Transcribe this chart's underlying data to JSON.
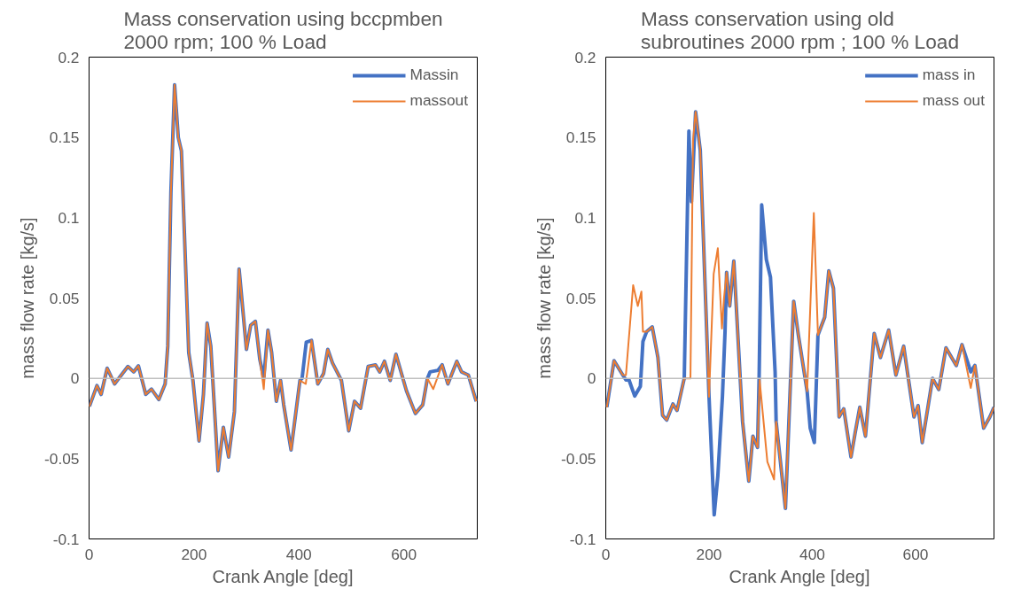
{
  "chart_data": [
    {
      "type": "line",
      "title": "Mass conservation using bccpmben\n2000 rpm; 100 % Load",
      "xlabel": "Crank Angle [deg]",
      "ylabel": "mass flow rate [kg/s]",
      "xlim": [
        0,
        740
      ],
      "ylim": [
        -0.1,
        0.2
      ],
      "xticks": [
        0,
        200,
        400,
        600
      ],
      "yticks": [
        -0.1,
        -0.05,
        0,
        0.05,
        0.1,
        0.15,
        0.2
      ],
      "grid": false,
      "legend": "top right",
      "ref_lines": [
        {
          "axis": "y",
          "value": 0,
          "label": null,
          "color": "#bfbfbf"
        }
      ],
      "series": [
        {
          "name": "Massin",
          "color": "#4472c4",
          "x": [
            0.6,
            15,
            23,
            34.5,
            48.6,
            74,
            85,
            94,
            108,
            119,
            133,
            145,
            150,
            156,
            163,
            170,
            176,
            190,
            198,
            209.6,
            218,
            225,
            232,
            246,
            256,
            266,
            277,
            286,
            300,
            308,
            317,
            325.5,
            333,
            341,
            348,
            357,
            365,
            371,
            385,
            402,
            406,
            414,
            424,
            436,
            447,
            455,
            464,
            481,
            495,
            506,
            517.5,
            532,
            546,
            554,
            563,
            574,
            585,
            605,
            622,
            636,
            645,
            650,
            665,
            673,
            684,
            701,
            710,
            723,
            738
          ],
          "values": [
            -0.0175,
            -0.0045,
            -0.01,
            0.0063,
            -0.0035,
            0.0074,
            0.004,
            0.0078,
            -0.01,
            -0.0067,
            -0.0132,
            -0.0035,
            0.02,
            0.1156,
            0.1827,
            0.15,
            0.1416,
            0.016,
            -0.0013,
            -0.039,
            -0.01,
            0.0344,
            0.02,
            -0.0576,
            -0.0305,
            -0.049,
            -0.0208,
            0.068,
            0.018,
            0.033,
            0.0355,
            0.0117,
            0,
            0.03,
            0.016,
            -0.0143,
            -0.0013,
            -0.0165,
            -0.0446,
            -0.0013,
            0,
            0.0225,
            0.0236,
            -0.0035,
            0.003,
            0.018,
            0.0095,
            -0.0013,
            -0.0327,
            -0.0143,
            -0.0186,
            0.0074,
            0.0084,
            0.004,
            0.0106,
            -0.0013,
            0.015,
            -0.0078,
            -0.0219,
            -0.0165,
            0,
            0.004,
            0.005,
            0.0084,
            -0.0035,
            0.0106,
            0.004,
            0.002,
            -0.0143
          ]
        },
        {
          "name": "massout",
          "color": "#ed7d31",
          "x": [
            0.6,
            15,
            23,
            34.5,
            48.6,
            74,
            85,
            94,
            108,
            119,
            133,
            145,
            150,
            156,
            163,
            170,
            176,
            190,
            198,
            209.6,
            218,
            225,
            232,
            246,
            256,
            266,
            277,
            286,
            300,
            308,
            317,
            325.5,
            333,
            341,
            348,
            357,
            365,
            371,
            385,
            402,
            413,
            424,
            436,
            447,
            455,
            464,
            481,
            495,
            506,
            517.5,
            532,
            546,
            554,
            563,
            574,
            585,
            605,
            622,
            636,
            645,
            656,
            673,
            684,
            701,
            710,
            723,
            738
          ],
          "values": [
            -0.0175,
            -0.0045,
            -0.01,
            0.0063,
            -0.0035,
            0.0074,
            0.004,
            0.0078,
            -0.01,
            -0.0067,
            -0.0132,
            -0.0035,
            0.02,
            0.1156,
            0.1827,
            0.15,
            0.1416,
            0.016,
            -0.0013,
            -0.039,
            -0.01,
            0.0344,
            0.02,
            -0.0576,
            -0.0305,
            -0.049,
            -0.0208,
            0.068,
            0.018,
            0.033,
            0.0355,
            0.0117,
            -0.0067,
            0.03,
            0.016,
            -0.0143,
            -0.0013,
            -0.0165,
            -0.0446,
            -0.0013,
            -0.0035,
            0.0236,
            -0.0035,
            0.003,
            0.018,
            0.0095,
            -0.0013,
            -0.0327,
            -0.0143,
            -0.0186,
            0.0074,
            0.0084,
            0.004,
            0.0106,
            -0.0013,
            0.015,
            -0.0078,
            -0.0219,
            -0.0165,
            0,
            -0.0067,
            0.0084,
            -0.0035,
            0.0106,
            0.004,
            0.002,
            -0.0143
          ]
        }
      ]
    },
    {
      "type": "line",
      "title": "Mass conservation using old\nsubroutines 2000 rpm ; 100 % Load",
      "xlabel": "Crank Angle [deg]",
      "ylabel": "mass flow rate [kg/s]",
      "xlim": [
        0,
        752
      ],
      "ylim": [
        -0.1,
        0.2
      ],
      "xticks": [
        0,
        200,
        400,
        600
      ],
      "yticks": [
        -0.1,
        -0.05,
        0,
        0.05,
        0.1,
        0.15,
        0.2
      ],
      "grid": false,
      "legend": "top right",
      "ref_lines": [
        {
          "axis": "y",
          "value": 0,
          "label": null,
          "color": "#bfbfbf"
        }
      ],
      "series": [
        {
          "name": "mass in",
          "color": "#4472c4",
          "x": [
            2,
            16,
            33,
            39,
            45,
            56,
            67,
            72,
            79,
            90,
            101,
            110,
            118,
            130,
            138,
            152,
            161,
            166,
            174,
            183,
            200,
            210,
            217,
            226,
            231,
            234,
            240,
            248,
            265,
            277,
            285,
            294,
            297,
            302,
            311,
            319,
            328,
            330,
            348,
            364,
            373,
            390,
            396,
            404,
            411,
            424,
            432,
            441,
            452,
            461,
            475,
            483,
            492,
            503,
            520,
            532,
            548,
            562,
            577,
            597,
            605,
            613,
            633,
            645,
            659,
            679,
            690,
            707,
            715,
            732,
            744,
            752
          ],
          "values": [
            -0.018,
            0.011,
            0.002,
            -0.001,
            -0.001,
            -0.011,
            -0.005,
            0.023,
            0.029,
            0.032,
            0.013,
            -0.023,
            -0.026,
            -0.016,
            -0.02,
            0,
            0.154,
            0.11,
            0.166,
            0.142,
            -0.0115,
            -0.085,
            -0.061,
            -0.011,
            0.029,
            0.066,
            0.045,
            0.073,
            -0.027,
            -0.064,
            -0.036,
            -0.043,
            0,
            0.108,
            0.074,
            0.063,
            0.004,
            -0.027,
            -0.081,
            0.048,
            0.027,
            -0.008,
            -0.031,
            -0.04,
            0.027,
            0.038,
            0.067,
            0.056,
            -0.024,
            -0.019,
            -0.049,
            -0.034,
            -0.018,
            -0.036,
            0.028,
            0.013,
            0.03,
            0.002,
            0.02,
            -0.024,
            -0.017,
            -0.04,
            0,
            -0.007,
            0.019,
            0.008,
            0.021,
            0.004,
            0.008,
            -0.031,
            -0.024,
            -0.018
          ]
        },
        {
          "name": "mass out",
          "color": "#ed7d31",
          "x": [
            2,
            16,
            33,
            39,
            53,
            62,
            69,
            72,
            79,
            90,
            101,
            110,
            118,
            130,
            138,
            152,
            164,
            169,
            174,
            183,
            200,
            209,
            217,
            225,
            229,
            234,
            240,
            248,
            265,
            277,
            285,
            294,
            298,
            313,
            326,
            330,
            348,
            364,
            373,
            390,
            403,
            411,
            424,
            432,
            441,
            452,
            461,
            475,
            483,
            492,
            503,
            520,
            532,
            548,
            562,
            577,
            597,
            605,
            613,
            633,
            645,
            659,
            679,
            690,
            707,
            715,
            732,
            744,
            752
          ],
          "values": [
            -0.018,
            0.011,
            0.002,
            0.002,
            0.058,
            0.045,
            0.054,
            0.029,
            0.029,
            0.032,
            0.013,
            -0.023,
            -0.026,
            -0.016,
            -0.02,
            0,
            0,
            0.148,
            0.166,
            0.142,
            -0.0115,
            0.065,
            0.081,
            0.031,
            0.05,
            0.066,
            0.045,
            0.073,
            -0.027,
            -0.064,
            -0.036,
            -0.043,
            -0.001,
            -0.052,
            -0.063,
            -0.027,
            -0.081,
            0.048,
            0.027,
            -0.008,
            0.103,
            0.027,
            0.038,
            0.067,
            0.056,
            -0.024,
            -0.019,
            -0.049,
            -0.034,
            -0.018,
            -0.036,
            0.028,
            0.013,
            0.03,
            0.002,
            0.02,
            -0.024,
            -0.017,
            -0.04,
            0,
            -0.007,
            0.019,
            0.008,
            0.021,
            -0.006,
            0.008,
            -0.031,
            -0.024,
            -0.018
          ]
        }
      ]
    }
  ]
}
